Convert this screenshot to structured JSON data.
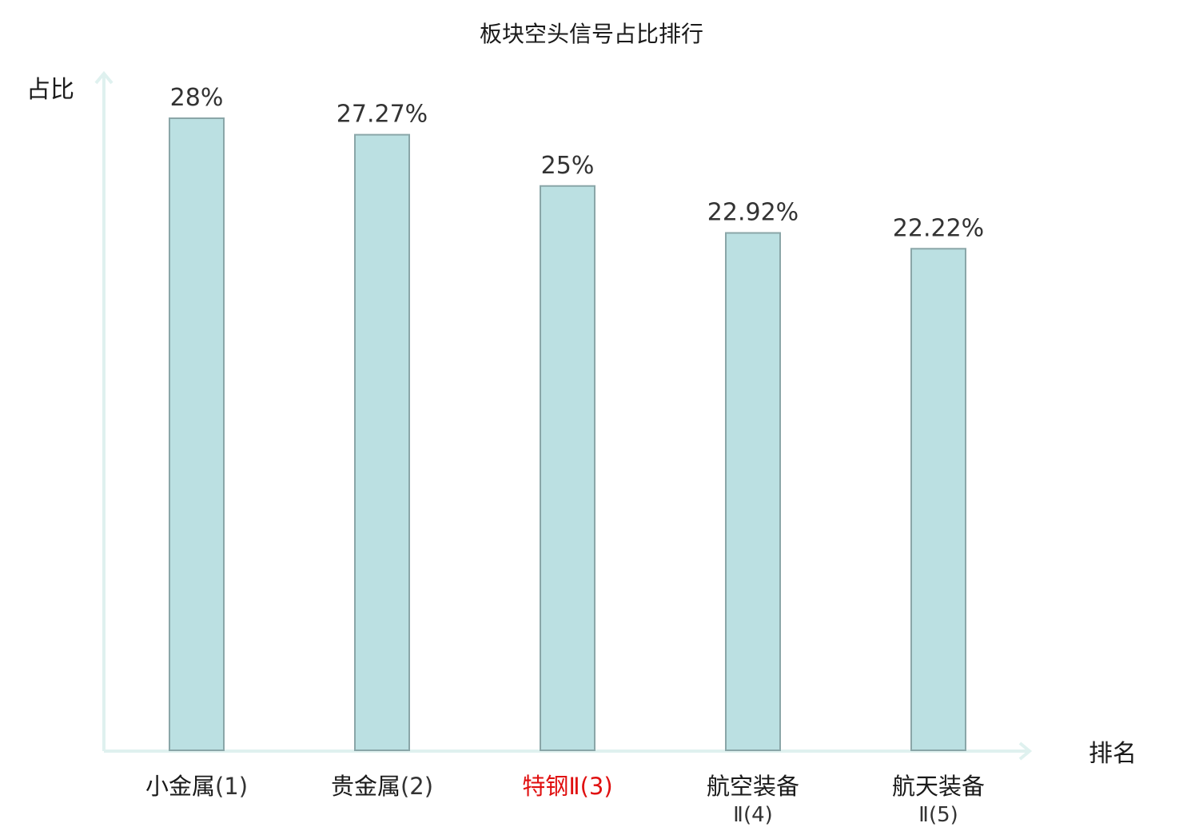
{
  "chart_data": {
    "type": "bar",
    "title": "板块空头信号占比排行",
    "xlabel": "排名",
    "ylabel": "占比",
    "ylim": [
      0,
      30
    ],
    "grid": false,
    "legend": "none",
    "categories": [
      {
        "name": "小金属",
        "rank": "(1)",
        "highlight": false
      },
      {
        "name": "贵金属",
        "rank": "(2)",
        "highlight": false
      },
      {
        "name": "特钢Ⅱ",
        "rank": "(3)",
        "highlight": true
      },
      {
        "name": "航空装备",
        "rank": "Ⅱ(4)",
        "highlight": false
      },
      {
        "name": "航天装备",
        "rank": "Ⅱ(5)",
        "highlight": false
      }
    ],
    "values": [
      28,
      27.27,
      25,
      22.92,
      22.22
    ],
    "value_labels": [
      "28%",
      "27.27%",
      "25%",
      "22.92%",
      "22.22%"
    ]
  },
  "colors": {
    "bar_fill": "#bbe0e2",
    "bar_stroke": "#8aa6a8",
    "axis": "#dff1ef",
    "label_default": "#1a1a1a",
    "rank_default": "#333333",
    "label_highlight": "#e01010"
  }
}
